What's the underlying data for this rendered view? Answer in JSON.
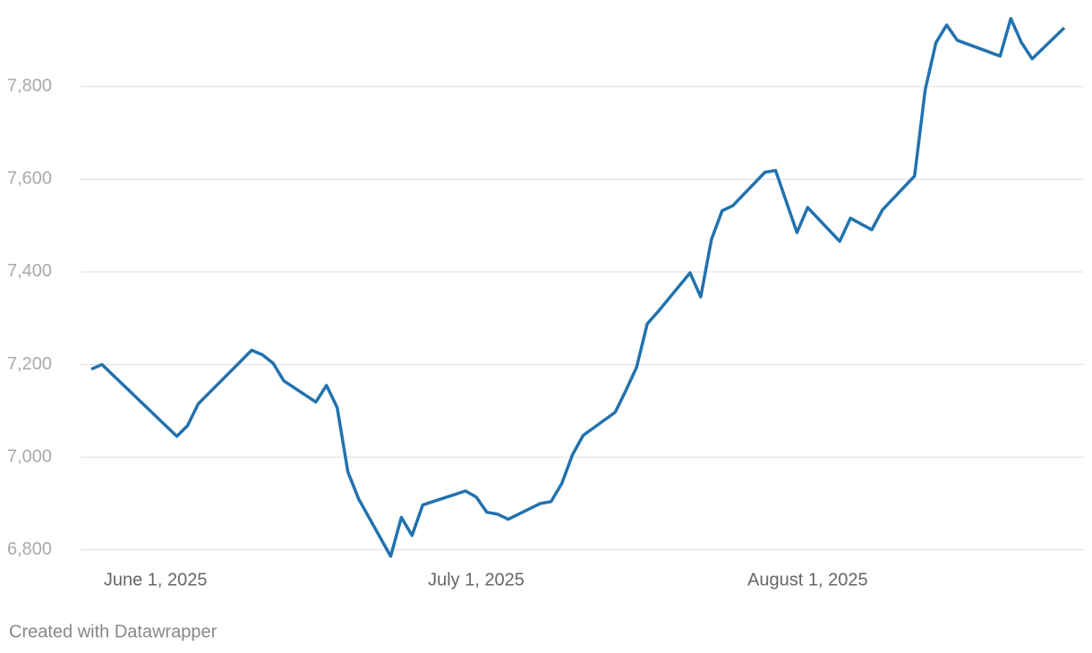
{
  "chart_data": {
    "type": "line",
    "x": [
      "2025-05-26",
      "2025-05-27",
      "2025-06-03",
      "2025-06-04",
      "2025-06-05",
      "2025-06-10",
      "2025-06-11",
      "2025-06-12",
      "2025-06-13",
      "2025-06-16",
      "2025-06-17",
      "2025-06-18",
      "2025-06-19",
      "2025-06-20",
      "2025-06-23",
      "2025-06-24",
      "2025-06-25",
      "2025-06-26",
      "2025-06-30",
      "2025-07-01",
      "2025-07-02",
      "2025-07-03",
      "2025-07-04",
      "2025-07-07",
      "2025-07-08",
      "2025-07-09",
      "2025-07-10",
      "2025-07-11",
      "2025-07-14",
      "2025-07-15",
      "2025-07-16",
      "2025-07-17",
      "2025-07-18",
      "2025-07-21",
      "2025-07-22",
      "2025-07-23",
      "2025-07-24",
      "2025-07-25",
      "2025-07-28",
      "2025-07-29",
      "2025-07-31",
      "2025-08-01",
      "2025-08-04",
      "2025-08-05",
      "2025-08-07",
      "2025-08-08",
      "2025-08-11",
      "2025-08-12",
      "2025-08-13",
      "2025-08-14",
      "2025-08-15",
      "2025-08-19",
      "2025-08-20",
      "2025-08-21",
      "2025-08-22",
      "2025-08-25"
    ],
    "series": [
      {
        "color": "#2272ae",
        "values": [
          7190,
          7200,
          7045,
          7068,
          7115,
          7231,
          7221,
          7203,
          7165,
          7119,
          7155,
          7107,
          6968,
          6910,
          6786,
          6870,
          6831,
          6897,
          6927,
          6914,
          6881,
          6877,
          6866,
          6900,
          6904,
          6943,
          7005,
          7047,
          7097,
          7144,
          7194,
          7288,
          7314,
          7398,
          7346,
          7470,
          7532,
          7543,
          7615,
          7619,
          7485,
          7539,
          7466,
          7516,
          7491,
          7534,
          7607,
          7794,
          7895,
          7933,
          7900,
          7866,
          7947,
          7895,
          7860,
          7927
        ]
      }
    ],
    "xlim": [
      "2025-05-26",
      "2025-08-25"
    ],
    "xticks": [
      {
        "value": "2025-06-01",
        "label": "June 1, 2025"
      },
      {
        "value": "2025-07-01",
        "label": "July 1, 2025"
      },
      {
        "value": "2025-08-01",
        "label": "August 1, 2025"
      }
    ],
    "ylim": [
      6780,
      7960
    ],
    "yticks": [
      {
        "value": 6800,
        "label": "6,800"
      },
      {
        "value": 7000,
        "label": "7,000"
      },
      {
        "value": 7200,
        "label": "7,200"
      },
      {
        "value": 7400,
        "label": "7,400"
      },
      {
        "value": 7600,
        "label": "7,600"
      },
      {
        "value": 7800,
        "label": "7,800"
      }
    ],
    "grid": true,
    "caption": "Created with Datawrapper"
  }
}
